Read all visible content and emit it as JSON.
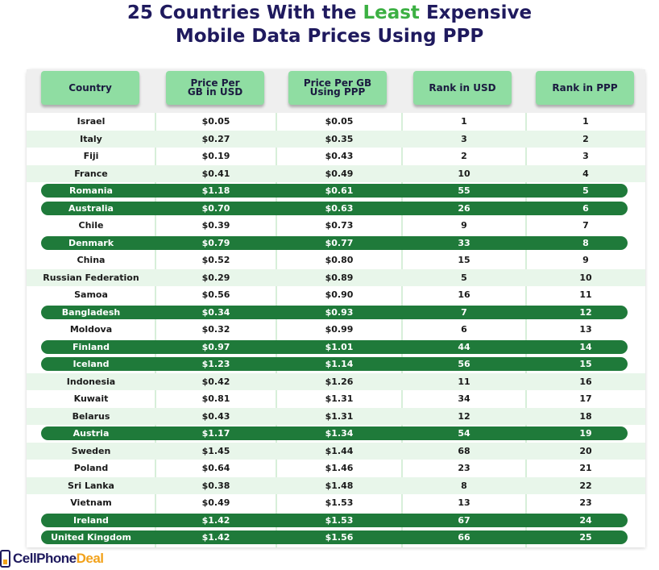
{
  "title": {
    "line1_pre": "25 Countries With the ",
    "line1_accent": "Least",
    "line1_post": " Expensive",
    "line2": "Mobile Data Prices Using PPP"
  },
  "colors": {
    "title": "#1f1a5e",
    "accent": "#3cb043",
    "header_bg": "#8fdda2",
    "highlight_row": "#1f7a3a",
    "alt_row": "#e8f6ea",
    "logo_orange": "#f2a21b"
  },
  "columns": [
    "Country",
    "Price Per\nGB in USD",
    "Price Per GB\nUsing PPP",
    "Rank in USD",
    "Rank in PPP"
  ],
  "rows": [
    {
      "country": "Israel",
      "usd": "$0.05",
      "ppp": "$0.05",
      "rank_usd": "1",
      "rank_ppp": "1",
      "highlight": false
    },
    {
      "country": "Italy",
      "usd": "$0.27",
      "ppp": "$0.35",
      "rank_usd": "3",
      "rank_ppp": "2",
      "highlight": false
    },
    {
      "country": "Fiji",
      "usd": "$0.19",
      "ppp": "$0.43",
      "rank_usd": "2",
      "rank_ppp": "3",
      "highlight": false
    },
    {
      "country": "France",
      "usd": "$0.41",
      "ppp": "$0.49",
      "rank_usd": "10",
      "rank_ppp": "4",
      "highlight": false
    },
    {
      "country": "Romania",
      "usd": "$1.18",
      "ppp": "$0.61",
      "rank_usd": "55",
      "rank_ppp": "5",
      "highlight": true
    },
    {
      "country": "Australia",
      "usd": "$0.70",
      "ppp": "$0.63",
      "rank_usd": "26",
      "rank_ppp": "6",
      "highlight": true
    },
    {
      "country": "Chile",
      "usd": "$0.39",
      "ppp": "$0.73",
      "rank_usd": "9",
      "rank_ppp": "7",
      "highlight": false
    },
    {
      "country": "Denmark",
      "usd": "$0.79",
      "ppp": "$0.77",
      "rank_usd": "33",
      "rank_ppp": "8",
      "highlight": true
    },
    {
      "country": "China",
      "usd": "$0.52",
      "ppp": "$0.80",
      "rank_usd": "15",
      "rank_ppp": "9",
      "highlight": false
    },
    {
      "country": "Russian Federation",
      "usd": "$0.29",
      "ppp": "$0.89",
      "rank_usd": "5",
      "rank_ppp": "10",
      "highlight": false
    },
    {
      "country": "Samoa",
      "usd": "$0.56",
      "ppp": "$0.90",
      "rank_usd": "16",
      "rank_ppp": "11",
      "highlight": false
    },
    {
      "country": "Bangladesh",
      "usd": "$0.34",
      "ppp": "$0.93",
      "rank_usd": "7",
      "rank_ppp": "12",
      "highlight": true
    },
    {
      "country": "Moldova",
      "usd": "$0.32",
      "ppp": "$0.99",
      "rank_usd": "6",
      "rank_ppp": "13",
      "highlight": false
    },
    {
      "country": "Finland",
      "usd": "$0.97",
      "ppp": "$1.01",
      "rank_usd": "44",
      "rank_ppp": "14",
      "highlight": true
    },
    {
      "country": "Iceland",
      "usd": "$1.23",
      "ppp": "$1.14",
      "rank_usd": "56",
      "rank_ppp": "15",
      "highlight": true
    },
    {
      "country": "Indonesia",
      "usd": "$0.42",
      "ppp": "$1.26",
      "rank_usd": "11",
      "rank_ppp": "16",
      "highlight": false
    },
    {
      "country": "Kuwait",
      "usd": "$0.81",
      "ppp": "$1.31",
      "rank_usd": "34",
      "rank_ppp": "17",
      "highlight": false
    },
    {
      "country": "Belarus",
      "usd": "$0.43",
      "ppp": "$1.31",
      "rank_usd": "12",
      "rank_ppp": "18",
      "highlight": false
    },
    {
      "country": "Austria",
      "usd": "$1.17",
      "ppp": "$1.34",
      "rank_usd": "54",
      "rank_ppp": "19",
      "highlight": true
    },
    {
      "country": "Sweden",
      "usd": "$1.45",
      "ppp": "$1.44",
      "rank_usd": "68",
      "rank_ppp": "20",
      "highlight": false
    },
    {
      "country": "Poland",
      "usd": "$0.64",
      "ppp": "$1.46",
      "rank_usd": "23",
      "rank_ppp": "21",
      "highlight": false
    },
    {
      "country": "Sri Lanka",
      "usd": "$0.38",
      "ppp": "$1.48",
      "rank_usd": "8",
      "rank_ppp": "22",
      "highlight": false
    },
    {
      "country": "Vietnam",
      "usd": "$0.49",
      "ppp": "$1.53",
      "rank_usd": "13",
      "rank_ppp": "23",
      "highlight": false
    },
    {
      "country": "Ireland",
      "usd": "$1.42",
      "ppp": "$1.53",
      "rank_usd": "67",
      "rank_ppp": "24",
      "highlight": true
    },
    {
      "country": "United Kingdom",
      "usd": "$1.42",
      "ppp": "$1.56",
      "rank_usd": "66",
      "rank_ppp": "25",
      "highlight": true
    }
  ],
  "logo": {
    "text_part1": "CellPhone",
    "text_part2": "Deal",
    "icon": "phone-signal-icon"
  }
}
